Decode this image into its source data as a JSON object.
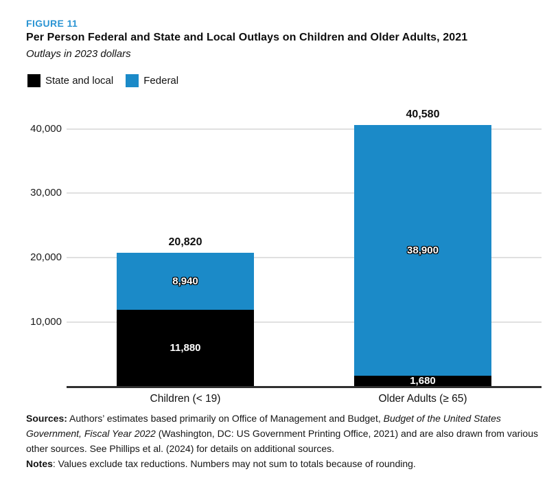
{
  "figure": {
    "label": "FIGURE 11",
    "title": "Per Person Federal and State and Local Outlays on Children and Older Adults, 2021",
    "subtitle": "Outlays in 2023 dollars"
  },
  "legend": [
    {
      "name": "state-and-local",
      "label": "State and local",
      "color": "#000000"
    },
    {
      "name": "federal",
      "label": "Federal",
      "color": "#1b8ac8"
    }
  ],
  "chart_data": {
    "type": "bar",
    "stacked": true,
    "title": "Per Person Federal and State and Local Outlays on Children and Older Adults, 2021",
    "subtitle": "Outlays in 2023 dollars",
    "categories": [
      "Children (< 19)",
      "Older Adults (≥ 65)"
    ],
    "series": [
      {
        "name": "State and local",
        "color": "#000000",
        "values": [
          11880,
          1680
        ],
        "labels": [
          "11,880",
          "1,680"
        ]
      },
      {
        "name": "Federal",
        "color": "#1b8ac8",
        "values": [
          8940,
          38900
        ],
        "labels": [
          "8,940",
          "38,900"
        ]
      }
    ],
    "totals": [
      20820,
      40580
    ],
    "total_labels": [
      "20,820",
      "40,580"
    ],
    "yticks": [
      10000,
      20000,
      30000,
      40000
    ],
    "ytick_labels": [
      "10,000",
      "20,000",
      "30,000",
      "40,000"
    ],
    "ylim": [
      0,
      44000
    ],
    "grid": true,
    "legend_position": "top-left"
  },
  "footer": {
    "sources_runs": [
      {
        "text": "Sources:",
        "bold": true
      },
      {
        "text": " Authors’ estimates based primarily on Office of Management and Budget, "
      },
      {
        "text": "Budget of the United States Government, Fiscal Year 2022",
        "italic": true
      },
      {
        "text": " (Washington, DC: US Government Printing Office, 2021) and are also drawn from various other sources. See Phillips et al. (2024) for details on additional sources."
      }
    ],
    "notes_runs": [
      {
        "text": "Notes",
        "bold": true
      },
      {
        "text": ": Values exclude tax reductions. Numbers may not sum to totals because of rounding."
      }
    ]
  },
  "colors": {
    "figure_label": "#2a94d3",
    "bar_blue": "#1b8ac8",
    "bar_black": "#000000",
    "gridline": "#e0e0e0",
    "axis_line": "#2f2f2f"
  }
}
